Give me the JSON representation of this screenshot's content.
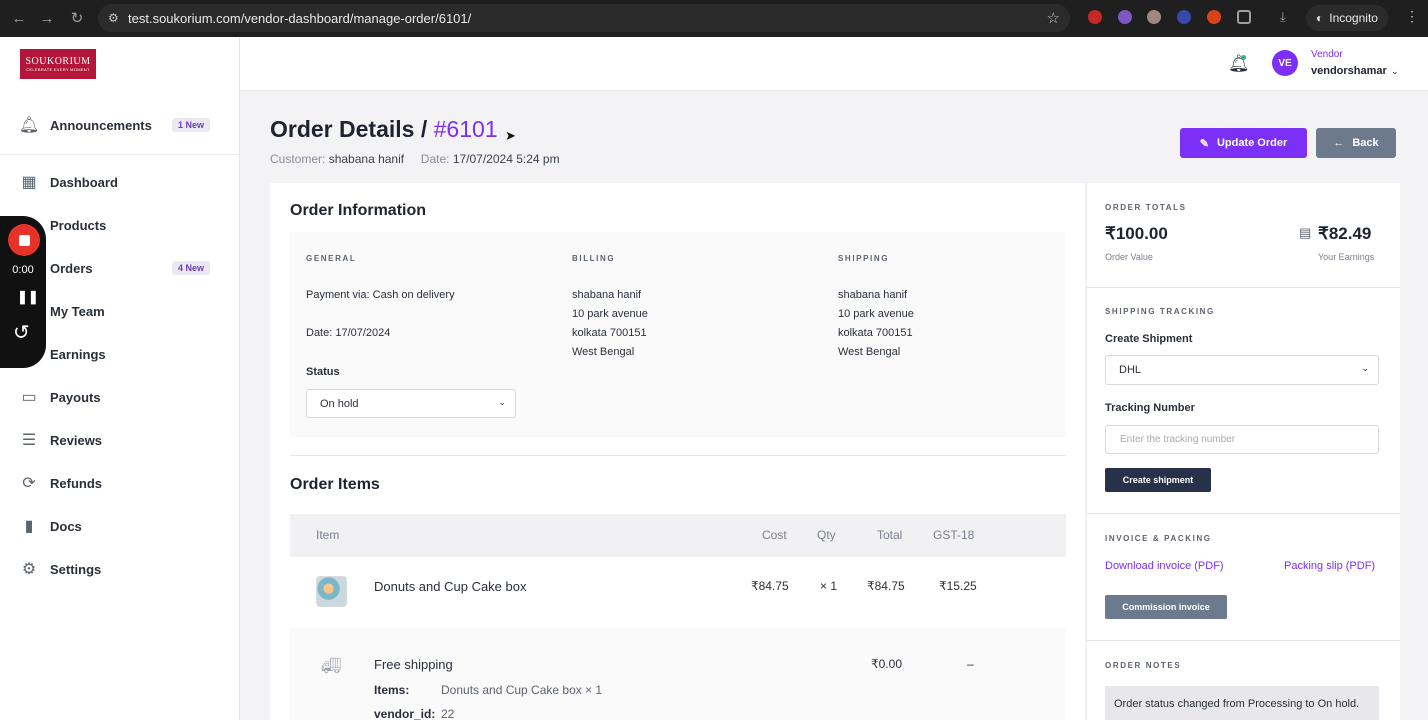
{
  "browser": {
    "url": "test.soukorium.com/vendor-dashboard/manage-order/6101/",
    "profile": "Incognito"
  },
  "brand": {
    "name": "SOUKORIUM",
    "tagline": "CELEBRATE EVERY MOMENT",
    "color": "#b3163a"
  },
  "sidebar": {
    "announcements": {
      "label": "Announcements",
      "badge": "1 New"
    },
    "items": [
      {
        "label": "Dashboard",
        "icon": "grid-icon",
        "badge": ""
      },
      {
        "label": "Products",
        "icon": "box-icon",
        "badge": ""
      },
      {
        "label": "Orders",
        "icon": "cart-icon",
        "badge": "4 New"
      },
      {
        "label": "My Team",
        "icon": "team-icon",
        "badge": ""
      },
      {
        "label": "Earnings",
        "icon": "coin-icon",
        "badge": ""
      },
      {
        "label": "Payouts",
        "icon": "wallet-icon",
        "badge": ""
      },
      {
        "label": "Reviews",
        "icon": "clipboard-icon",
        "badge": ""
      },
      {
        "label": "Refunds",
        "icon": "refresh-icon",
        "badge": ""
      },
      {
        "label": "Docs",
        "icon": "book-icon",
        "badge": ""
      },
      {
        "label": "Settings",
        "icon": "people-gear-icon",
        "badge": ""
      }
    ]
  },
  "recorder": {
    "time": "0:00"
  },
  "header": {
    "avatar_initials": "VE",
    "role": "Vendor",
    "username": "vendorshamar"
  },
  "page": {
    "title": "Order Details /",
    "order_number": "#6101",
    "customer_label": "Customer:",
    "customer": "shabana hanif",
    "date_label": "Date:",
    "date": "17/07/2024 5:24 pm",
    "update_button": "Update Order",
    "back_button": "Back"
  },
  "order_info": {
    "heading": "Order Information",
    "general": {
      "heading": "GENERAL",
      "payment": "Payment via: Cash on delivery",
      "date": "Date: 17/07/2024",
      "status_label": "Status",
      "status_value": "On hold"
    },
    "billing": {
      "heading": "BILLING",
      "name": "shabana hanif",
      "street": "10 park avenue",
      "city": "kolkata 700151",
      "state": "West Bengal"
    },
    "shipping": {
      "heading": "SHIPPING",
      "name": "shabana hanif",
      "street": "10 park avenue",
      "city": "kolkata 700151",
      "state": "West Bengal"
    }
  },
  "order_items": {
    "heading": "Order Items",
    "columns": {
      "item": "Item",
      "cost": "Cost",
      "qty": "Qty",
      "total": "Total",
      "gst": "GST-18"
    },
    "rows": [
      {
        "name": "Donuts and Cup Cake box",
        "cost": "₹84.75",
        "qty": "× 1",
        "total": "₹84.75",
        "gst": "₹15.25"
      }
    ],
    "shipping": {
      "name": "Free shipping",
      "total": "₹0.00",
      "gst": "–",
      "items_label": "Items:",
      "items_value": "Donuts and Cup Cake box × 1",
      "vendor_label": "vendor_id:",
      "vendor_value": "22"
    }
  },
  "totals": {
    "heading": "ORDER TOTALS",
    "order_value": "₹100.00",
    "order_value_label": "Order Value",
    "earnings": "₹82.49",
    "earnings_label": "Your Earnings"
  },
  "tracking": {
    "heading": "SHIPPING TRACKING",
    "create_label": "Create Shipment",
    "carrier": "DHL",
    "tracking_label": "Tracking Number",
    "tracking_placeholder": "Enter the tracking number",
    "create_button": "Create shipment"
  },
  "invoice": {
    "heading": "INVOICE & PACKING",
    "download": "Download invoice (PDF)",
    "packing": "Packing slip (PDF)",
    "commission": "Commission invoice"
  },
  "notes": {
    "heading": "ORDER NOTES",
    "note": "Order status changed from Processing to On hold."
  },
  "colors": {
    "accent": "#7b2ff7",
    "secondary": "#6d7a8e",
    "dark_button": "#27324a"
  }
}
